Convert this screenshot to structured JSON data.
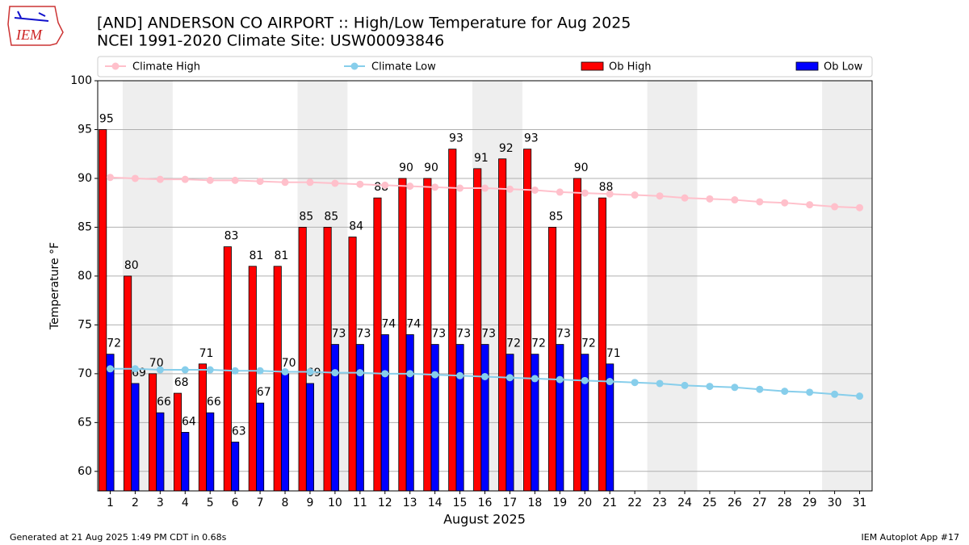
{
  "logo_text": "IEM",
  "chart_data": {
    "type": "bar",
    "title": "[AND] ANDERSON CO AIRPORT :: High/Low Temperature for Aug 2025",
    "subtitle": "NCEI 1991-2020 Climate Site: USW00093846",
    "x_label": "August 2025",
    "y_label": "Temperature °F",
    "footer_left": "Generated at 21 Aug 2025 1:49 PM CDT in 0.68s",
    "footer_right": "IEM Autoplot App #17",
    "x": [
      1,
      2,
      3,
      4,
      5,
      6,
      7,
      8,
      9,
      10,
      11,
      12,
      13,
      14,
      15,
      16,
      17,
      18,
      19,
      20,
      21,
      22,
      23,
      24,
      25,
      26,
      27,
      28,
      29,
      30,
      31
    ],
    "xlim": [
      0.5,
      31.5
    ],
    "ylim": [
      58,
      100
    ],
    "yticks": [
      60,
      65,
      70,
      75,
      80,
      85,
      90,
      95,
      100
    ],
    "grid": true,
    "legend": "top",
    "shaded_days": [
      [
        2,
        3
      ],
      [
        9,
        10
      ],
      [
        16,
        17
      ],
      [
        23,
        24
      ],
      [
        30,
        31
      ]
    ],
    "series": [
      {
        "name": "Climate High",
        "type": "line",
        "color": "#ffc0cb",
        "values": [
          90.1,
          90.0,
          89.9,
          89.9,
          89.8,
          89.8,
          89.7,
          89.6,
          89.6,
          89.5,
          89.4,
          89.3,
          89.2,
          89.1,
          89.0,
          89.0,
          88.9,
          88.8,
          88.6,
          88.5,
          88.4,
          88.3,
          88.2,
          88.0,
          87.9,
          87.8,
          87.6,
          87.5,
          87.3,
          87.1,
          87.0
        ]
      },
      {
        "name": "Climate Low",
        "type": "line",
        "color": "#87ceeb",
        "values": [
          70.5,
          70.5,
          70.4,
          70.4,
          70.4,
          70.3,
          70.3,
          70.2,
          70.2,
          70.1,
          70.1,
          70.0,
          70.0,
          69.9,
          69.8,
          69.7,
          69.6,
          69.5,
          69.4,
          69.3,
          69.2,
          69.1,
          69.0,
          68.8,
          68.7,
          68.6,
          68.4,
          68.2,
          68.1,
          67.9,
          67.7
        ]
      },
      {
        "name": "Ob High",
        "type": "bar",
        "color": "#ff0000",
        "values": [
          95,
          80,
          70,
          68,
          71,
          83,
          81,
          81,
          85,
          85,
          84,
          88,
          90,
          90,
          93,
          91,
          92,
          93,
          85,
          90,
          88,
          null,
          null,
          null,
          null,
          null,
          null,
          null,
          null,
          null,
          null
        ]
      },
      {
        "name": "Ob Low",
        "type": "bar",
        "color": "#0000ff",
        "values": [
          72,
          69,
          66,
          64,
          66,
          63,
          67,
          70,
          69,
          73,
          73,
          74,
          74,
          73,
          73,
          73,
          72,
          72,
          73,
          72,
          71,
          null,
          null,
          null,
          null,
          null,
          null,
          null,
          null,
          null,
          null
        ]
      }
    ]
  }
}
